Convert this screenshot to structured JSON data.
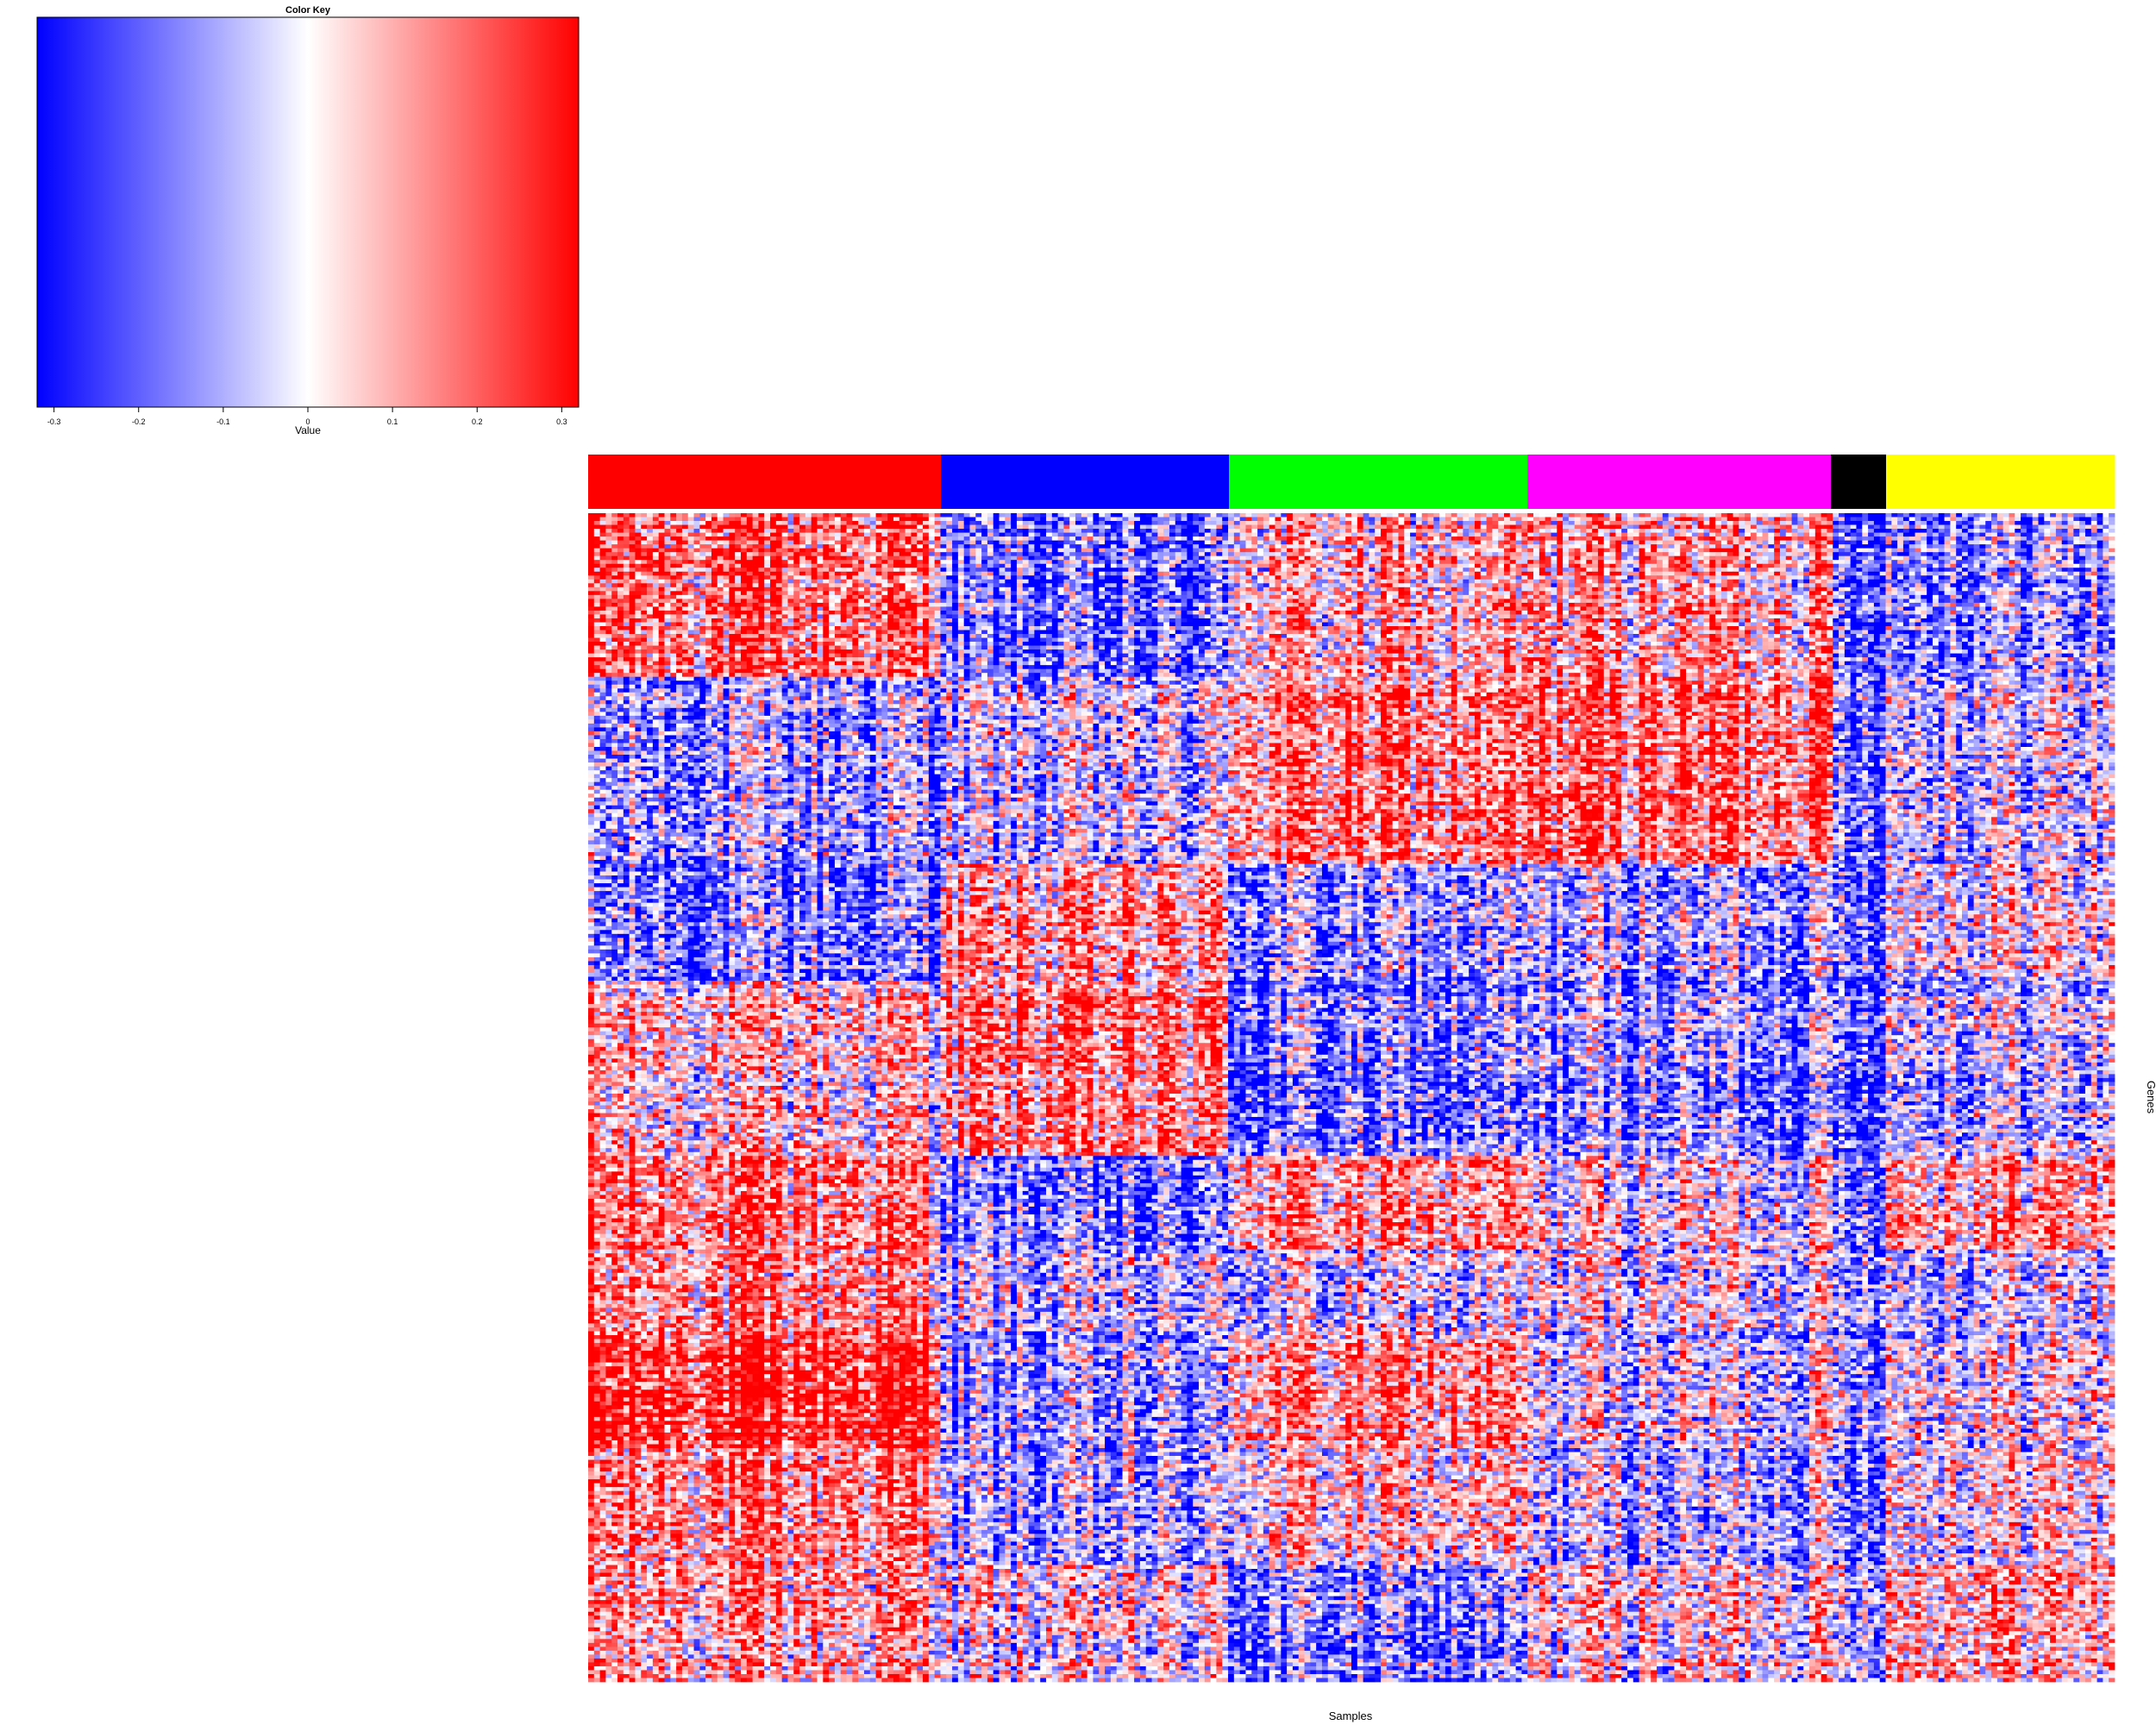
{
  "chart_data": [
    {
      "type": "heatmap",
      "title": "Color Key",
      "xlabel": "Value",
      "ticks": [
        "-0.3",
        "-0.2",
        "-0.1",
        "0",
        "0.1",
        "0.2",
        "0.3"
      ],
      "range": [
        -0.32,
        0.32
      ],
      "colors": [
        "#0000ff",
        "#ffffff",
        "#ff0000"
      ]
    },
    {
      "type": "heatmap",
      "xlabel": "Samples",
      "ylabel": "Genes",
      "groups": [
        {
          "color": "#ff0000",
          "fraction": 0.2312
        },
        {
          "color": "#0000ff",
          "fraction": 0.1886
        },
        {
          "color": "#00ff00",
          "fraction": 0.1957
        },
        {
          "color": "#ff00ff",
          "fraction": 0.1986
        },
        {
          "color": "#000000",
          "fraction": 0.0362
        },
        {
          "color": "#ffff00",
          "fraction": 0.1497
        }
      ],
      "colors": [
        "#0000ff",
        "#ffffff",
        "#ff0000"
      ],
      "value_range": [
        -0.32,
        0.32
      ]
    }
  ]
}
